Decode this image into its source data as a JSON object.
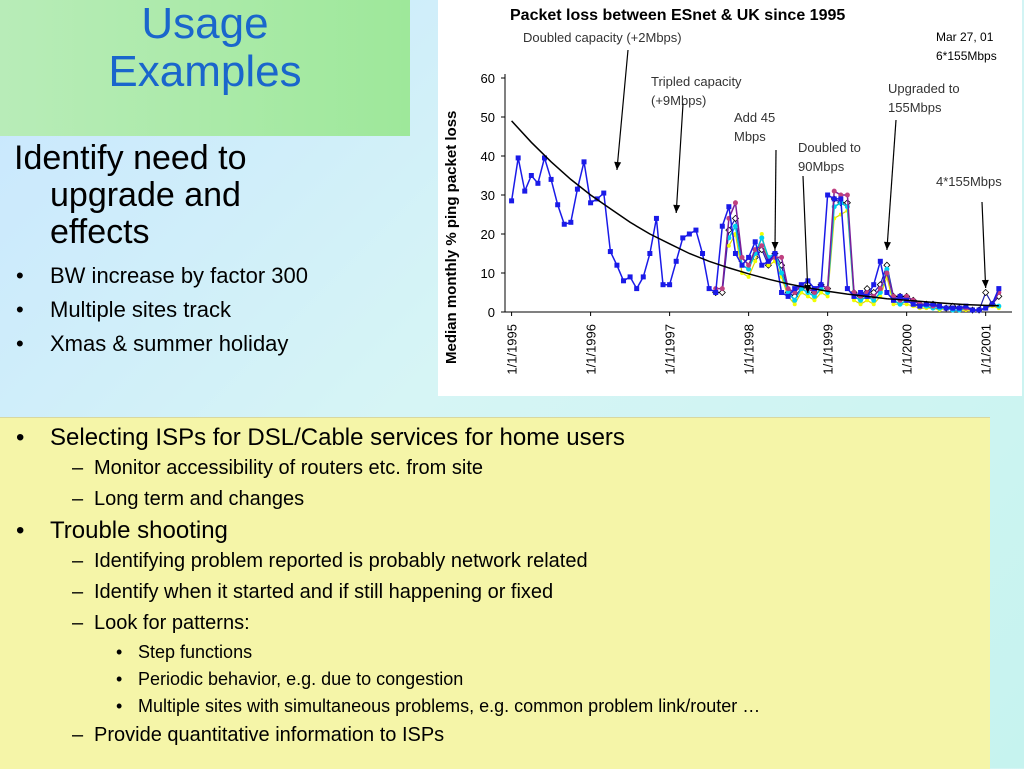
{
  "slide": {
    "title_line1": "Usage",
    "title_line2": "Examples",
    "left_heading": [
      "Identify need to",
      "upgrade and",
      "effects"
    ],
    "left_bullets": [
      "BW increase by factor 300",
      "Multiple sites track",
      "Xmas & summer holiday"
    ],
    "bottom": [
      {
        "level": 1,
        "text": "Selecting ISPs for DSL/Cable services for home users"
      },
      {
        "level": 2,
        "text": "Monitor accessibility of routers etc. from site"
      },
      {
        "level": 2,
        "text": "Long term and changes"
      },
      {
        "level": 1,
        "text": "Trouble shooting"
      },
      {
        "level": 2,
        "text": "Identifying problem reported is probably network related"
      },
      {
        "level": 2,
        "text": "Identify when it started and if still happening or fixed"
      },
      {
        "level": 2,
        "text": "Look for patterns:"
      },
      {
        "level": 3,
        "text": "Step functions"
      },
      {
        "level": 3,
        "text": "Periodic behavior, e.g. due to congestion"
      },
      {
        "level": 3,
        "text": "Multiple sites with simultaneous problems, e.g. common problem link/router …"
      },
      {
        "level": 2,
        "text": "Provide quantitative information to ISPs"
      }
    ]
  },
  "colors": {
    "title": "#1a66cc",
    "primary_series": "#1010e0",
    "trend": "#000000"
  },
  "chart_data": {
    "type": "line",
    "title": "Packet loss between ESnet & UK since 1995",
    "ylabel": "Median monthly % ping packet loss",
    "xlabel": "",
    "ylim": [
      0,
      60
    ],
    "xlim": [
      "1994-12",
      "2001-05"
    ],
    "yticks": [
      0,
      10,
      20,
      30,
      40,
      50,
      60
    ],
    "xtick_labels": [
      "1/1/1995",
      "1/1/1996",
      "1/1/1997",
      "1/1/1998",
      "1/1/1999",
      "1/1/2000",
      "1/1/2001"
    ],
    "date_note": [
      "Mar 27, 01",
      "6*155Mbps"
    ],
    "grid": false,
    "legend": "none",
    "annotations": [
      {
        "text": "Doubled capacity (+2Mbps)",
        "date": "1996-05"
      },
      {
        "text": "Tripled capacity (+9Mbps)",
        "date": "1997-02"
      },
      {
        "text": "Add 45 Mbps",
        "date": "1998-05"
      },
      {
        "text": "Doubled to 90Mbps",
        "date": "1998-10"
      },
      {
        "text": "Upgraded to 155Mbps",
        "date": "1999-10"
      },
      {
        "text": "4*155Mbps",
        "date": "2001-01"
      }
    ],
    "series": [
      {
        "x": [
          "1995-01",
          "1995-02",
          "1995-03",
          "1995-04",
          "1995-05",
          "1995-06",
          "1995-07",
          "1995-08",
          "1995-09",
          "1995-10",
          "1995-11",
          "1995-12",
          "1996-01",
          "1996-02",
          "1996-03",
          "1996-04",
          "1996-05",
          "1996-06",
          "1996-07",
          "1996-08",
          "1996-09",
          "1996-10",
          "1996-11",
          "1996-12",
          "1997-01",
          "1997-02",
          "1997-03",
          "1997-04",
          "1997-05",
          "1997-06",
          "1997-07",
          "1997-08",
          "1997-09",
          "1997-10",
          "1997-11",
          "1997-12",
          "1998-01",
          "1998-02",
          "1998-03",
          "1998-04",
          "1998-05",
          "1998-06",
          "1998-07",
          "1998-08",
          "1998-09",
          "1998-10",
          "1998-11",
          "1998-12",
          "1999-01",
          "1999-02",
          "1999-03",
          "1999-04",
          "1999-05",
          "1999-06",
          "1999-07",
          "1999-08",
          "1999-09",
          "1999-10",
          "1999-11",
          "1999-12",
          "2000-01",
          "2000-02",
          "2000-03",
          "2000-04",
          "2000-05",
          "2000-06",
          "2000-07",
          "2000-08",
          "2000-09",
          "2000-10",
          "2000-11",
          "2000-12",
          "2001-01",
          "2001-02",
          "2001-03"
        ],
        "values": [
          28.5,
          39.5,
          31,
          35,
          33,
          39.5,
          34,
          27.5,
          22.5,
          23,
          31.5,
          38.5,
          28,
          29,
          30.5,
          15.5,
          12,
          8,
          9,
          6,
          9,
          15,
          24,
          7,
          7,
          13,
          19,
          20,
          21,
          15,
          6,
          5,
          22,
          27,
          15,
          12,
          14,
          18,
          12,
          13,
          15,
          5,
          4,
          6,
          7,
          8,
          6,
          7,
          30,
          29,
          29,
          6,
          4,
          5,
          4,
          7,
          13,
          5,
          3,
          4,
          3,
          2,
          1.5,
          2,
          2,
          1.5,
          1,
          1,
          1,
          1.5,
          0.5,
          0.5,
          1,
          2,
          6
        ]
      },
      {
        "x": [
          "1997-08",
          "1997-09",
          "1997-10",
          "1997-11",
          "1997-12",
          "1998-01",
          "1998-02",
          "1998-03",
          "1998-04",
          "1998-05",
          "1998-06",
          "1998-07",
          "1998-08",
          "1998-09",
          "1998-10",
          "1998-11",
          "1998-12",
          "1999-01",
          "1999-02",
          "1999-03",
          "1999-04",
          "1999-05",
          "1999-06",
          "1999-07",
          "1999-08",
          "1999-09",
          "1999-10",
          "1999-11",
          "1999-12",
          "2000-01",
          "2000-02",
          "2000-03",
          "2000-04",
          "2000-05",
          "2000-06",
          "2000-07",
          "2000-08",
          "2000-09",
          "2000-10",
          "2000-11",
          "2000-12",
          "2001-01",
          "2001-02",
          "2001-03"
        ],
        "values": [
          6,
          6,
          24,
          28,
          14,
          12,
          16,
          17,
          13,
          14,
          14,
          6,
          5,
          7,
          6,
          5,
          7,
          6,
          31,
          30,
          30,
          5,
          4,
          5,
          4,
          6,
          10,
          4,
          3,
          4,
          3,
          2,
          2,
          1.5,
          1.5,
          1,
          1,
          1,
          1,
          0.5,
          0.5,
          1,
          2,
          5
        ]
      },
      {
        "x": [
          "1997-10",
          "1997-11",
          "1997-12",
          "1998-01",
          "1998-02",
          "1998-03",
          "1998-04",
          "1998-05",
          "1998-06",
          "1998-07",
          "1998-08",
          "1998-09",
          "1998-10",
          "1998-11",
          "1998-12",
          "1999-01",
          "1999-02",
          "1999-03",
          "1999-04",
          "1999-05",
          "1999-06",
          "1999-07",
          "1999-08",
          "1999-09",
          "1999-10",
          "1999-11",
          "1999-12",
          "2000-01",
          "2000-02",
          "2000-03",
          "2000-04",
          "2000-05",
          "2000-06",
          "2000-07",
          "2000-08",
          "2000-09",
          "2000-10",
          "2000-11",
          "2000-12",
          "2001-01",
          "2001-02",
          "2001-03"
        ],
        "values": [
          19,
          22,
          12,
          11,
          15,
          19,
          14,
          15,
          10,
          5,
          3,
          6,
          5,
          4,
          6,
          5,
          27,
          28,
          27,
          4,
          3,
          4,
          3,
          5,
          11,
          3,
          2,
          3,
          2,
          1.5,
          1.5,
          1,
          1,
          1,
          0.5,
          0.5,
          1,
          0.5,
          0.5,
          1,
          2,
          1.5
        ]
      },
      {
        "x": [
          "1997-10",
          "1997-11",
          "1997-12",
          "1998-01",
          "1998-02",
          "1998-03",
          "1998-04",
          "1998-05",
          "1998-06",
          "1998-07",
          "1998-08",
          "1998-09",
          "1998-10",
          "1998-11",
          "1998-12",
          "1999-01",
          "1999-02",
          "1999-03",
          "1999-04",
          "1999-05",
          "1999-06",
          "1999-07",
          "1999-08",
          "1999-09",
          "1999-10",
          "1999-11",
          "1999-12",
          "2000-01",
          "2000-02",
          "2000-03",
          "2000-04",
          "2000-05",
          "2000-06",
          "2000-07",
          "2000-08",
          "2000-09",
          "2000-10",
          "2000-11",
          "2000-12",
          "2001-01",
          "2001-02",
          "2001-03"
        ],
        "values": [
          17,
          20,
          10,
          9,
          13,
          20,
          12,
          13,
          9,
          4,
          2,
          5,
          4,
          3,
          5,
          4,
          24,
          25,
          26,
          3,
          2,
          3,
          2,
          4,
          9,
          2,
          2,
          2,
          1.5,
          1,
          1,
          1,
          0.5,
          1,
          0.5,
          0.5,
          0.5,
          0.5,
          0.5,
          1,
          1.5,
          1
        ]
      },
      {
        "x": [
          "1997-08",
          "1997-09",
          "1997-10",
          "1997-11",
          "1997-12",
          "1998-01",
          "1998-02",
          "1998-03",
          "1998-04",
          "1998-05",
          "1998-06",
          "1998-07",
          "1998-08",
          "1998-09",
          "1998-10",
          "1998-11",
          "1998-12",
          "1999-01",
          "1999-02",
          "1999-03",
          "1999-04",
          "1999-05",
          "1999-06",
          "1999-07",
          "1999-08",
          "1999-09",
          "1999-10",
          "1999-11",
          "1999-12",
          "2000-01",
          "2000-02",
          "2000-03",
          "2000-04",
          "2000-05",
          "2000-06",
          "2000-07",
          "2000-08",
          "2000-09",
          "2000-10",
          "2000-11",
          "2000-12",
          "2001-01",
          "2001-02",
          "2001-03"
        ],
        "values": [
          5,
          5,
          21,
          24,
          13,
          13,
          14,
          16,
          12,
          15,
          12,
          5,
          4,
          6,
          7,
          5,
          7,
          6,
          29,
          28,
          28,
          5,
          4,
          6,
          5,
          7,
          12,
          4,
          4,
          4,
          3,
          2,
          2,
          2,
          1,
          1,
          1.5,
          1,
          1,
          0.5,
          0.5,
          5,
          2,
          4
        ]
      },
      {
        "x": [
          "1995-01",
          "1995-04",
          "1995-07",
          "1995-10",
          "1996-01",
          "1996-04",
          "1996-07",
          "1996-10",
          "1997-01",
          "1997-04",
          "1997-07",
          "1997-10",
          "1998-01",
          "1998-04",
          "1998-07",
          "1998-10",
          "1999-01",
          "1999-04",
          "1999-07",
          "1999-10",
          "2000-01",
          "2000-04",
          "2000-07",
          "2000-10",
          "2001-01",
          "2001-03"
        ],
        "values": [
          49,
          43.5,
          38.5,
          34,
          30,
          26.5,
          23,
          20,
          17.5,
          15,
          13,
          11.3,
          9.8,
          8.4,
          7.2,
          6.2,
          5.3,
          4.6,
          4,
          3.4,
          3,
          2.6,
          2.2,
          1.9,
          1.7,
          1.6
        ]
      }
    ]
  }
}
